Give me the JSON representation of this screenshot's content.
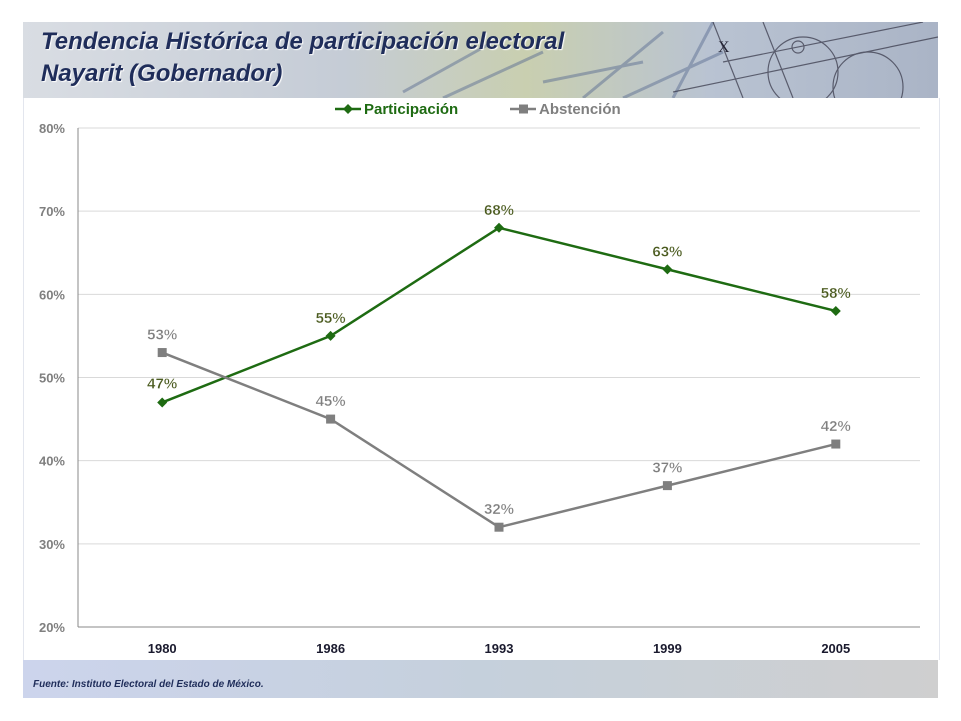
{
  "header": {
    "title_line1": "Tendencia Histórica de participación electoral",
    "title_line2": "Nayarit (Gobernador)"
  },
  "footer": {
    "source": "Fuente: Instituto Electoral del Estado de México."
  },
  "chart_data": {
    "type": "line",
    "categories": [
      "1980",
      "1986",
      "1993",
      "1999",
      "2005"
    ],
    "series": [
      {
        "name": "Participación",
        "values": [
          47,
          55,
          68,
          63,
          58
        ],
        "labels": [
          "47%",
          "55%",
          "68%",
          "63%",
          "58%"
        ],
        "color": "#1e6b12",
        "marker": "diamond",
        "label_color": "#4a5a1e"
      },
      {
        "name": "Abstención",
        "values": [
          53,
          45,
          32,
          37,
          42
        ],
        "labels": [
          "53%",
          "45%",
          "32%",
          "37%",
          "42%"
        ],
        "color": "#7f7f7f",
        "marker": "square",
        "label_color": "#7f7f7f"
      }
    ],
    "ylim": [
      20,
      80
    ],
    "yticks": [
      "20%",
      "30%",
      "40%",
      "50%",
      "60%",
      "70%",
      "80%"
    ],
    "ytick_values": [
      20,
      30,
      40,
      50,
      60,
      70,
      80
    ],
    "grid": true,
    "legend": "top-center"
  }
}
